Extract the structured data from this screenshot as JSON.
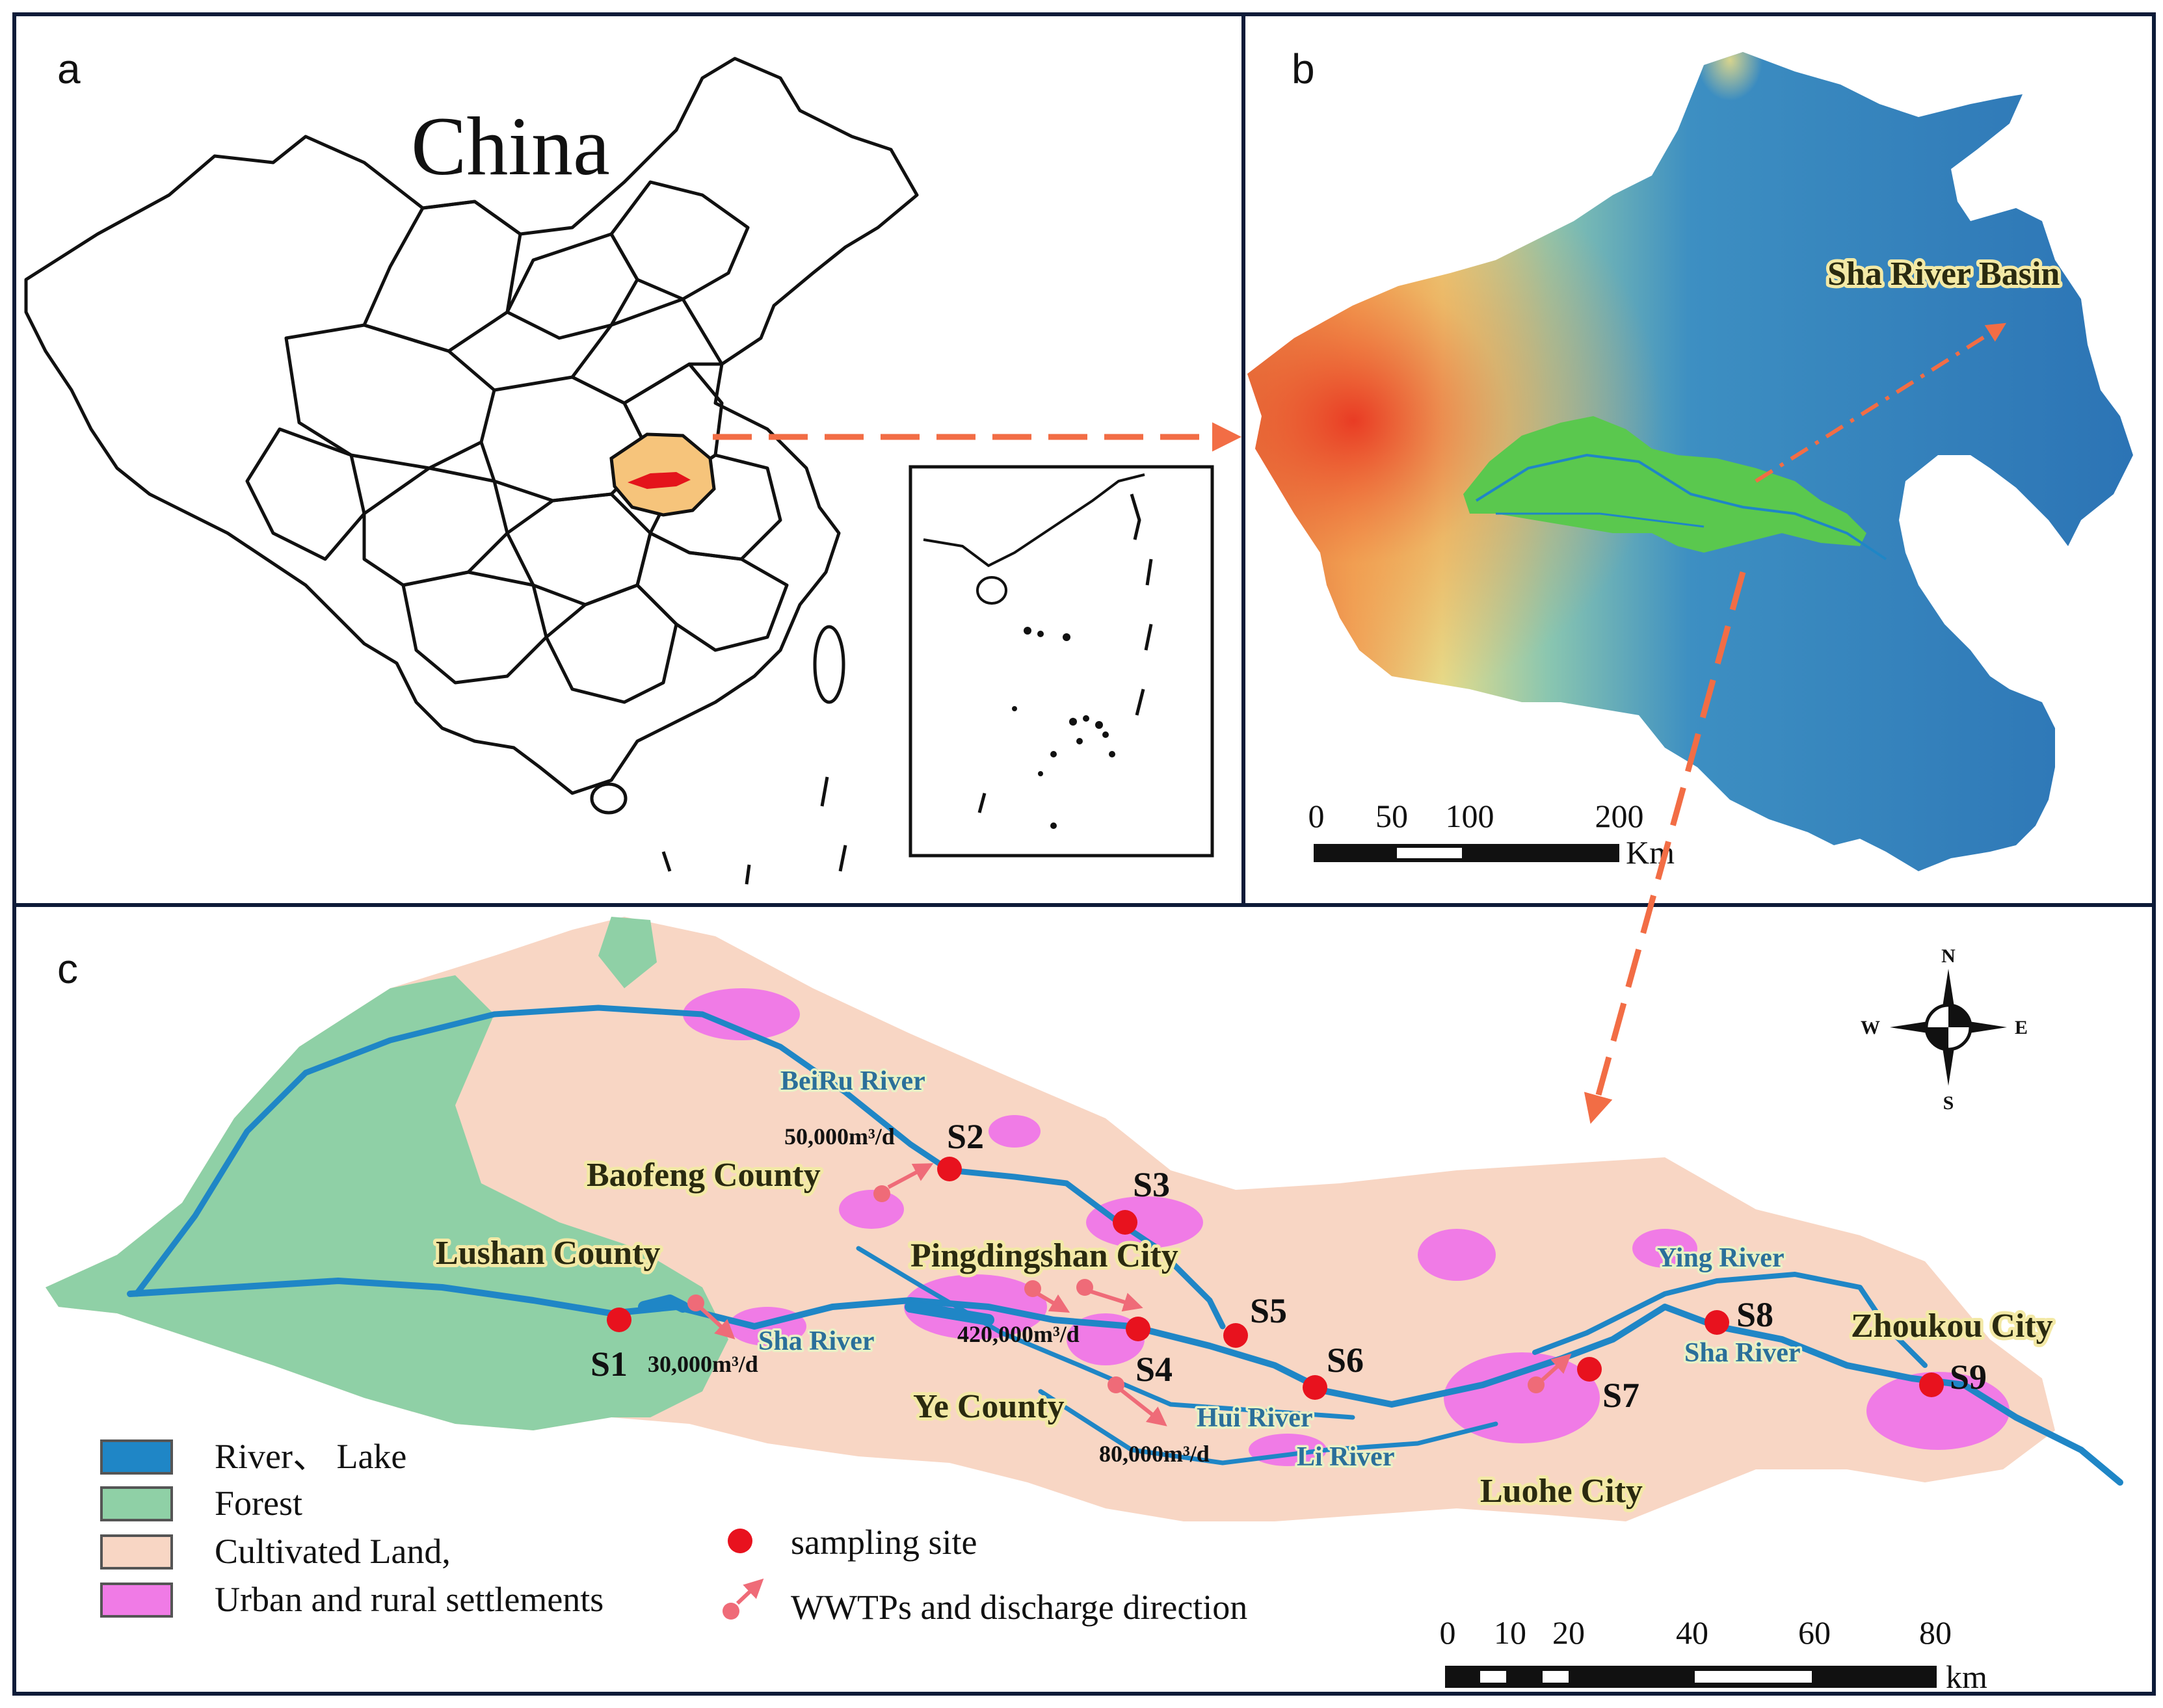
{
  "panels": {
    "a": {
      "letter": "a",
      "country_label": "China"
    },
    "b": {
      "letter": "b",
      "basin_label": "Sha River Basin",
      "scale": {
        "ticks": [
          "0",
          "50",
          "100",
          "200"
        ],
        "unit": "Km"
      }
    },
    "c": {
      "letter": "c",
      "compass": {
        "n": "N",
        "s": "S",
        "e": "E",
        "w": "W"
      },
      "places": {
        "baofeng": "Baofeng County",
        "lushan": "Lushan County",
        "pingdingshan": "Pingdingshan City",
        "ye": "Ye County",
        "luohe": "Luohe City",
        "zhoukou": "Zhoukou City"
      },
      "rivers": {
        "beiru": "BeiRu River",
        "sha_west": "Sha River",
        "hui": "Hui River",
        "li": "Li River",
        "ying": "Ying River",
        "sha_east": "Sha River"
      },
      "sites": [
        "S1",
        "S2",
        "S3",
        "S4",
        "S5",
        "S6",
        "S7",
        "S8",
        "S9"
      ],
      "discharges": {
        "s2": "50,000m³/d",
        "s1": "30,000m³/d",
        "s4": "420,000m³/d",
        "ye": "80,000m³/d"
      },
      "legend": {
        "river_lake": "River、 Lake",
        "forest": "Forest",
        "cultivated": "Cultivated Land,",
        "urban": "Urban and rural settlements",
        "sampling": "sampling site",
        "wwtp": "WWTPs and discharge direction"
      },
      "scale": {
        "ticks": [
          "0",
          "10",
          "20",
          "40",
          "60",
          "80"
        ],
        "unit": "km"
      }
    }
  },
  "colors": {
    "river": "#1f86c6",
    "forest": "#8fd0a6",
    "cultivated": "#f8d6c4",
    "urban": "#f07be6",
    "basin_green": "#5ac84e",
    "site_red": "#e8121e",
    "wwtp_pink": "#ef6b78",
    "arrow_orange": "#f26d45",
    "panel_border": "#0d1b38"
  }
}
